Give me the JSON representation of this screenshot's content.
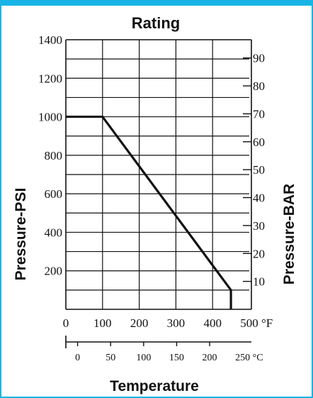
{
  "colors": {
    "frame": "#18b4e6",
    "ink": "#111111",
    "grid": "#111111"
  },
  "chart_data": {
    "type": "line",
    "title": "Rating",
    "xlabel": "Temperature",
    "ylabel": "Pressure-PSI",
    "y2label": "Pressure-BAR",
    "grid": true,
    "xlim": [
      0,
      500
    ],
    "ylim": [
      0,
      1400
    ],
    "x_ticks": [
      0,
      100,
      200,
      300,
      400,
      500
    ],
    "x_unit": "°F",
    "y_ticks": [
      200,
      400,
      600,
      800,
      1000,
      1200,
      1400
    ],
    "y2_ticks": [
      10,
      20,
      30,
      40,
      50,
      60,
      70,
      80,
      90
    ],
    "y2_bar_per_psi": 0.0689476,
    "c_ticks": [
      0,
      50,
      100,
      150,
      200,
      250
    ],
    "c_unit": "°C",
    "series": [
      {
        "x": [
          0,
          100,
          450,
          450
        ],
        "y": [
          1000,
          1000,
          100,
          0
        ]
      }
    ]
  }
}
